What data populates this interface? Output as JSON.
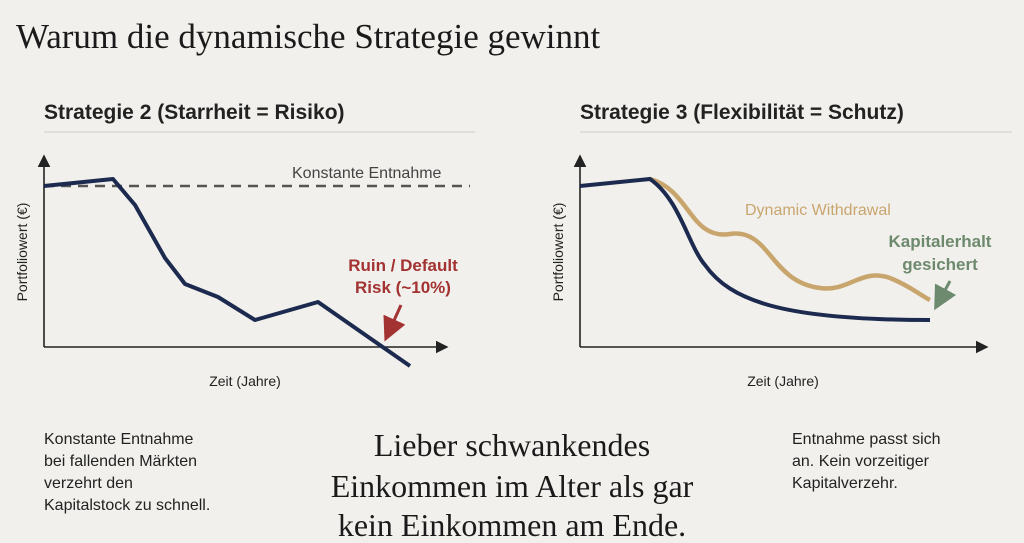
{
  "title": "Warum die dynamische Strategie gewinnt",
  "panels": [
    {
      "heading": "Strategie 2 (Starrheit = Risiko)",
      "y_label": "Portfoliowert (€)",
      "x_label": "Zeit (Jahre)",
      "line_label": "Konstante Entnahme",
      "annotation": [
        "Ruin / Default",
        "Risk (~10%)"
      ],
      "note": [
        "Konstante Entnahme",
        "bei fallenden Märkten",
        "verzehrt den",
        "Kapitalstock zu schnell."
      ]
    },
    {
      "heading": "Strategie 3 (Flexibilität = Schutz)",
      "y_label": "Portfoliowert (€)",
      "x_label": "Zeit (Jahre)",
      "line_label": "Dynamic Withdrawal",
      "annotation": [
        "Kapitalerhalt",
        "gesichert"
      ],
      "note": [
        "Entnahme passt sich",
        "an. Kein vorzeitiger",
        "Kapitalverzehr."
      ]
    }
  ],
  "quote": [
    "Lieber schwankendes",
    "Einkommen im Alter als gar",
    "kein Einkommen am Ende."
  ]
}
